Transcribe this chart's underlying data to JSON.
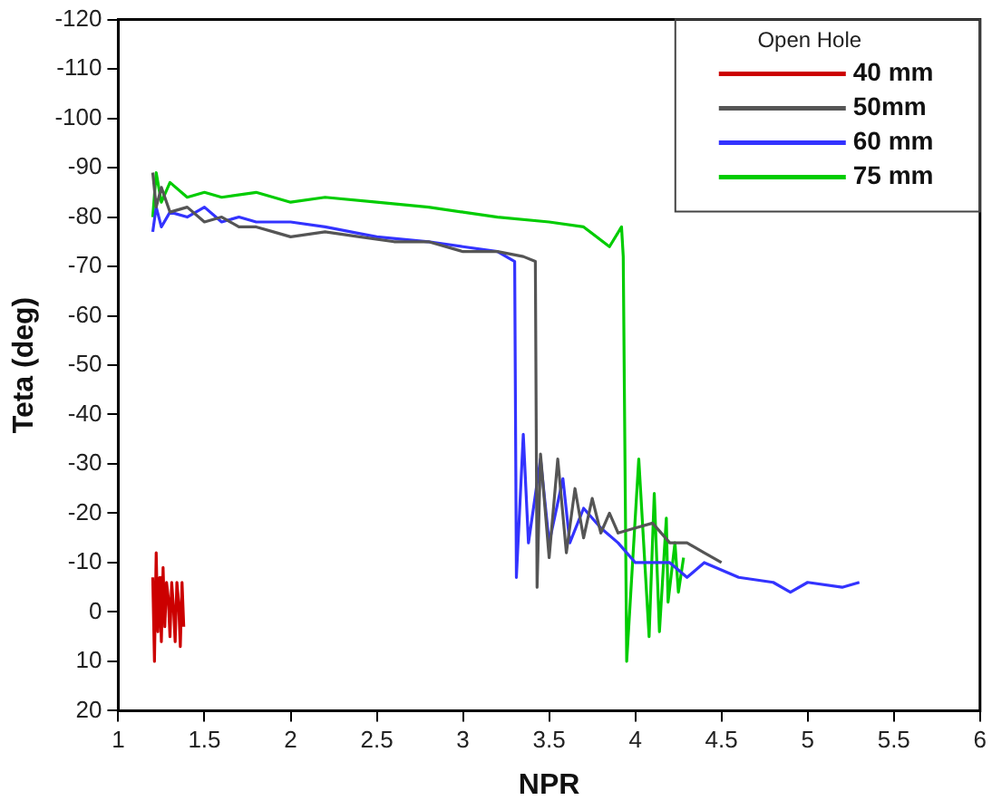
{
  "chart_data": {
    "type": "line",
    "xlabel": "NPR",
    "ylabel": "Teta (deg)",
    "legend_title": "Open Hole",
    "xlim": [
      1,
      6
    ],
    "xticks": [
      1,
      1.5,
      2,
      2.5,
      3,
      3.5,
      4,
      4.5,
      5,
      5.5,
      6
    ],
    "ylim": [
      20,
      -120
    ],
    "yticks": [
      -120,
      -110,
      -100,
      -90,
      -80,
      -70,
      -60,
      -50,
      -40,
      -30,
      -20,
      -10,
      0,
      10,
      20
    ],
    "grid": false,
    "legend": "top right",
    "marker": "none",
    "line_style": "solid",
    "series": [
      {
        "name": "40 mm",
        "color": "#cc0000",
        "x": [
          1.2,
          1.21,
          1.22,
          1.23,
          1.24,
          1.25,
          1.26,
          1.27,
          1.28,
          1.29,
          1.3,
          1.31,
          1.32,
          1.33,
          1.34,
          1.35,
          1.36,
          1.37,
          1.38
        ],
        "values": [
          -7,
          10,
          -12,
          4,
          -7,
          6,
          -9,
          3,
          -6,
          -3,
          5,
          -6,
          -1,
          6,
          -6,
          -2,
          7,
          -6,
          3
        ]
      },
      {
        "name": "50mm",
        "color": "#555555",
        "x": [
          1.2,
          1.22,
          1.25,
          1.3,
          1.4,
          1.5,
          1.6,
          1.7,
          1.8,
          1.9,
          2,
          2.2,
          2.4,
          2.6,
          2.8,
          3,
          3.2,
          3.35,
          3.42,
          3.43,
          3.45,
          3.5,
          3.55,
          3.6,
          3.65,
          3.7,
          3.75,
          3.8,
          3.85,
          3.9,
          4,
          4.1,
          4.2,
          4.3,
          4.4,
          4.5
        ],
        "values": [
          -89,
          -82,
          -86,
          -81,
          -82,
          -79,
          -80,
          -78,
          -78,
          -77,
          -76,
          -77,
          -76,
          -75,
          -75,
          -73,
          -73,
          -72,
          -71,
          -5,
          -32,
          -11,
          -31,
          -12,
          -25,
          -15,
          -23,
          -16,
          -20,
          -16,
          -17,
          -18,
          -14,
          -14,
          -12,
          -10
        ]
      },
      {
        "name": "60 mm",
        "color": "#3333ff",
        "x": [
          1.2,
          1.22,
          1.25,
          1.3,
          1.4,
          1.5,
          1.6,
          1.7,
          1.8,
          2,
          2.2,
          2.5,
          2.8,
          3,
          3.2,
          3.3,
          3.31,
          3.35,
          3.38,
          3.45,
          3.5,
          3.58,
          3.62,
          3.7,
          3.8,
          3.9,
          4,
          4.2,
          4.3,
          4.4,
          4.6,
          4.8,
          4.9,
          5,
          5.2,
          5.3
        ],
        "values": [
          -77,
          -82,
          -78,
          -81,
          -80,
          -82,
          -79,
          -80,
          -79,
          -79,
          -78,
          -76,
          -75,
          -74,
          -73,
          -71,
          -7,
          -36,
          -14,
          -31,
          -14,
          -27,
          -14,
          -21,
          -17,
          -14,
          -10,
          -10,
          -7,
          -10,
          -7,
          -6,
          -4,
          -6,
          -5,
          -6
        ]
      },
      {
        "name": "75 mm",
        "color": "#00cc00",
        "x": [
          1.2,
          1.22,
          1.25,
          1.3,
          1.4,
          1.5,
          1.6,
          1.8,
          2,
          2.2,
          2.5,
          2.8,
          3,
          3.2,
          3.5,
          3.7,
          3.85,
          3.92,
          3.93,
          3.95,
          4.02,
          4.08,
          4.11,
          4.14,
          4.18,
          4.19,
          4.23,
          4.25,
          4.28
        ],
        "values": [
          -80,
          -89,
          -83,
          -87,
          -84,
          -85,
          -84,
          -85,
          -83,
          -84,
          -83,
          -82,
          -81,
          -80,
          -79,
          -78,
          -74,
          -78,
          -72,
          10,
          -31,
          5,
          -24,
          4,
          -19,
          -2,
          -14,
          -4,
          -11
        ]
      }
    ]
  }
}
